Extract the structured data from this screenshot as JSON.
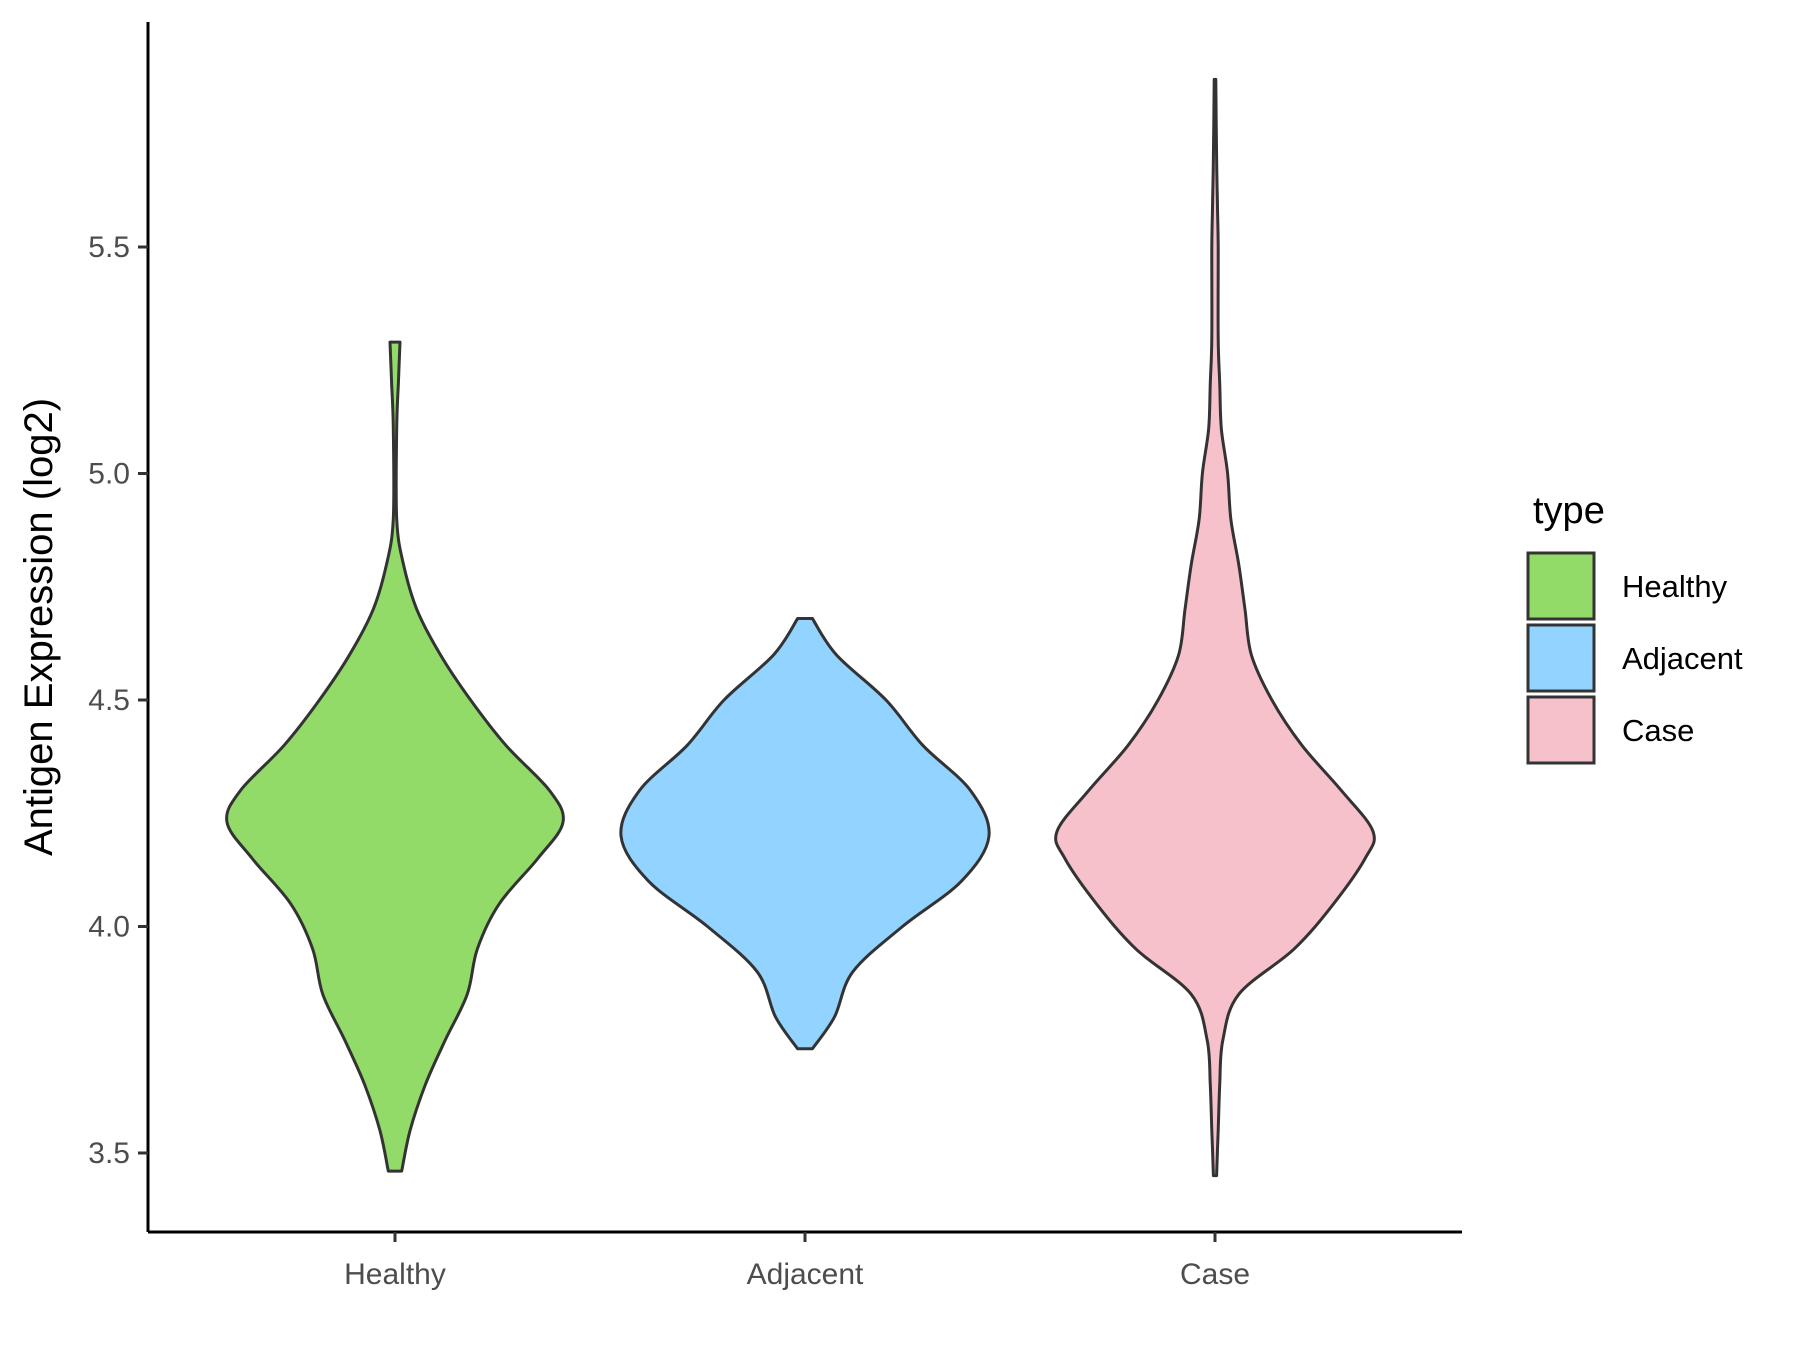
{
  "chart_data": {
    "type": "violin",
    "ylabel": "Antigen Expression (log2)",
    "xlabel": "",
    "ylim": [
      3.33,
      6.0
    ],
    "yticks": [
      3.5,
      4.0,
      4.5,
      5.0,
      5.5
    ],
    "ytick_labels": [
      "3.5",
      "4.0",
      "4.5",
      "5.0",
      "5.5"
    ],
    "categories": [
      "Healthy",
      "Adjacent",
      "Case"
    ],
    "legend": {
      "title": "type",
      "position": "right",
      "entries": [
        "Healthy",
        "Adjacent",
        "Case"
      ]
    },
    "grid": false,
    "series": [
      {
        "name": "Healthy",
        "color": "#93DB69",
        "min": 3.46,
        "max": 5.29,
        "density": [
          [
            3.46,
            0.04
          ],
          [
            3.55,
            0.09
          ],
          [
            3.65,
            0.18
          ],
          [
            3.75,
            0.3
          ],
          [
            3.85,
            0.43
          ],
          [
            3.95,
            0.49
          ],
          [
            4.05,
            0.62
          ],
          [
            4.15,
            0.85
          ],
          [
            4.23,
            1.0
          ],
          [
            4.3,
            0.92
          ],
          [
            4.4,
            0.66
          ],
          [
            4.5,
            0.45
          ],
          [
            4.6,
            0.27
          ],
          [
            4.7,
            0.13
          ],
          [
            4.8,
            0.05
          ],
          [
            4.9,
            0.01
          ],
          [
            5.1,
            0.01
          ],
          [
            5.2,
            0.02
          ],
          [
            5.29,
            0.03
          ]
        ]
      },
      {
        "name": "Adjacent",
        "color": "#92D3FF",
        "min": 3.73,
        "max": 4.68,
        "density": [
          [
            3.73,
            0.04
          ],
          [
            3.8,
            0.16
          ],
          [
            3.9,
            0.26
          ],
          [
            4.0,
            0.53
          ],
          [
            4.1,
            0.85
          ],
          [
            4.2,
            1.0
          ],
          [
            4.3,
            0.9
          ],
          [
            4.4,
            0.64
          ],
          [
            4.5,
            0.44
          ],
          [
            4.6,
            0.17
          ],
          [
            4.68,
            0.04
          ]
        ]
      },
      {
        "name": "Case",
        "color": "#F7C1CB",
        "min": 3.45,
        "max": 5.87,
        "density": [
          [
            3.45,
            0.01
          ],
          [
            3.55,
            0.02
          ],
          [
            3.65,
            0.03
          ],
          [
            3.75,
            0.05
          ],
          [
            3.85,
            0.15
          ],
          [
            3.95,
            0.5
          ],
          [
            4.05,
            0.75
          ],
          [
            4.15,
            0.95
          ],
          [
            4.21,
            1.0
          ],
          [
            4.3,
            0.8
          ],
          [
            4.4,
            0.55
          ],
          [
            4.5,
            0.36
          ],
          [
            4.6,
            0.23
          ],
          [
            4.7,
            0.19
          ],
          [
            4.8,
            0.15
          ],
          [
            4.9,
            0.1
          ],
          [
            5.0,
            0.08
          ],
          [
            5.1,
            0.04
          ],
          [
            5.2,
            0.03
          ],
          [
            5.3,
            0.02
          ],
          [
            5.5,
            0.02
          ],
          [
            5.6,
            0.015
          ],
          [
            5.7,
            0.01
          ],
          [
            5.87,
            0.005
          ]
        ]
      }
    ]
  }
}
